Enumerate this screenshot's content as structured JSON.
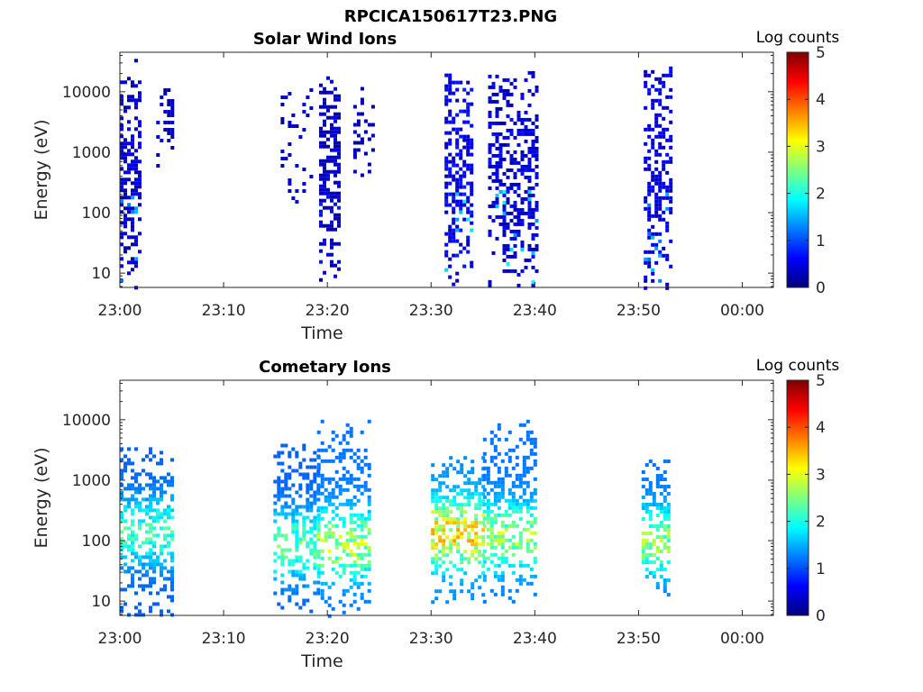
{
  "figure": {
    "title": "RPCICA150617T23.PNG"
  },
  "colormap": {
    "name": "jet",
    "stops": [
      "#00007f",
      "#0000ff",
      "#007fff",
      "#00ffff",
      "#7fff7f",
      "#ffff00",
      "#ff7f00",
      "#ff0000",
      "#7f0000"
    ]
  },
  "chart_data": [
    {
      "type": "heatmap",
      "title": "Solar Wind Ions",
      "xlabel": "Time",
      "ylabel": "Energy (eV)",
      "x_ticks": [
        "23:00",
        "23:10",
        "23:20",
        "23:30",
        "23:40",
        "23:50",
        "00:00"
      ],
      "x_range_minutes": [
        0,
        63
      ],
      "y_scale": "log",
      "y_ticks": [
        "10",
        "100",
        "1000",
        "10000"
      ],
      "y_range": [
        5.8,
        45000
      ],
      "colorbar": {
        "label": "Log counts",
        "ticks": [
          "0",
          "1",
          "2",
          "3",
          "4",
          "5"
        ],
        "range": [
          0,
          5
        ]
      },
      "bursts": [
        {
          "t_start_min": 0.0,
          "t_end_min": 1.8,
          "e_min": 6,
          "e_max": 35000,
          "density": 0.55,
          "level_mean": 0.4,
          "level_max": 1.6
        },
        {
          "t_start_min": 3.5,
          "t_end_min": 5.0,
          "e_min": 600,
          "e_max": 15000,
          "density": 0.3,
          "level_mean": 0.3,
          "level_max": 0.6
        },
        {
          "t_start_min": 15.5,
          "t_end_min": 18.5,
          "e_min": 150,
          "e_max": 15000,
          "density": 0.14,
          "level_mean": 0.3,
          "level_max": 0.5
        },
        {
          "t_start_min": 19.2,
          "t_end_min": 21.0,
          "e_min": 6,
          "e_max": 18000,
          "density": 0.6,
          "level_mean": 0.35,
          "level_max": 0.8
        },
        {
          "t_start_min": 22.5,
          "t_end_min": 24.5,
          "e_min": 400,
          "e_max": 12000,
          "density": 0.3,
          "level_mean": 0.3,
          "level_max": 0.6
        },
        {
          "t_start_min": 31.3,
          "t_end_min": 33.8,
          "e_min": 6,
          "e_max": 20000,
          "density": 0.55,
          "level_mean": 0.5,
          "level_max": 1.9
        },
        {
          "t_start_min": 35.5,
          "t_end_min": 40.2,
          "e_min": 6,
          "e_max": 22000,
          "density": 0.5,
          "level_mean": 0.45,
          "level_max": 1.9
        },
        {
          "t_start_min": 50.5,
          "t_end_min": 53.0,
          "e_min": 6,
          "e_max": 30000,
          "density": 0.5,
          "level_mean": 0.45,
          "level_max": 1.6
        }
      ]
    },
    {
      "type": "heatmap",
      "title": "Cometary Ions",
      "xlabel": "Time",
      "ylabel": "Energy (eV)",
      "x_ticks": [
        "23:00",
        "23:10",
        "23:20",
        "23:30",
        "23:40",
        "23:50",
        "00:00"
      ],
      "x_range_minutes": [
        0,
        63
      ],
      "y_scale": "log",
      "y_ticks": [
        "10",
        "100",
        "1000",
        "10000"
      ],
      "y_range": [
        5.8,
        45000
      ],
      "colorbar": {
        "label": "Log counts",
        "ticks": [
          "0",
          "1",
          "2",
          "3",
          "4",
          "5"
        ],
        "range": [
          0,
          5
        ]
      },
      "bursts": [
        {
          "t_start_min": 0.0,
          "t_end_min": 5.0,
          "e_min": 6,
          "e_max": 3500,
          "density": 0.55,
          "level_mean": 1.1,
          "level_max": 2.4,
          "core_e": 150
        },
        {
          "t_start_min": 14.8,
          "t_end_min": 19.0,
          "e_min": 6,
          "e_max": 4000,
          "density": 0.45,
          "level_mean": 1.1,
          "level_max": 2.6,
          "core_e": 90
        },
        {
          "t_start_min": 19.0,
          "t_end_min": 24.0,
          "e_min": 6,
          "e_max": 10000,
          "density": 0.5,
          "level_mean": 1.2,
          "level_max": 3.1,
          "core_e": 90
        },
        {
          "t_start_min": 30.0,
          "t_end_min": 35.0,
          "e_min": 10,
          "e_max": 2500,
          "density": 0.55,
          "level_mean": 1.3,
          "level_max": 3.6,
          "core_e": 140
        },
        {
          "t_start_min": 35.0,
          "t_end_min": 40.0,
          "e_min": 10,
          "e_max": 10000,
          "density": 0.5,
          "level_mean": 1.2,
          "level_max": 3.0,
          "core_e": 120
        },
        {
          "t_start_min": 50.3,
          "t_end_min": 53.0,
          "e_min": 12,
          "e_max": 2200,
          "density": 0.5,
          "level_mean": 1.2,
          "level_max": 2.9,
          "core_e": 100
        }
      ]
    }
  ]
}
